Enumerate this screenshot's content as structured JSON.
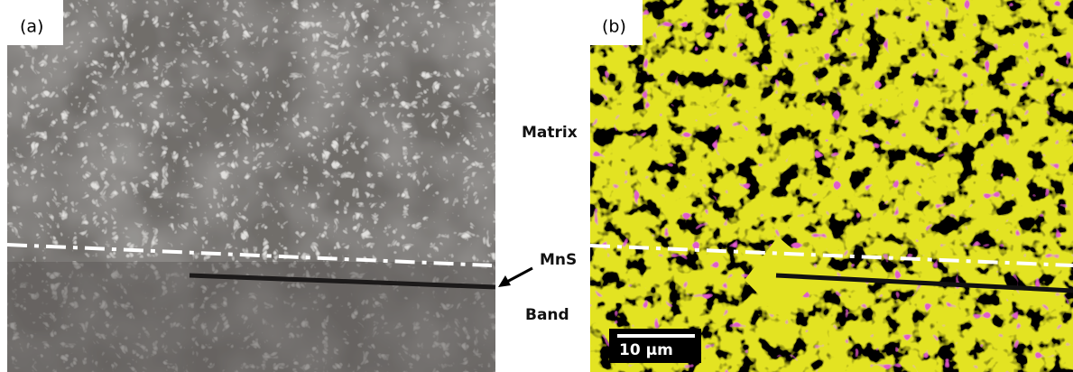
{
  "panels": [
    {
      "label": "(a)"
    },
    {
      "label": "(b)",
      "scale_bar": "10 μm"
    }
  ],
  "annotations": [
    "Matrix",
    "MnS",
    "Band"
  ]
}
